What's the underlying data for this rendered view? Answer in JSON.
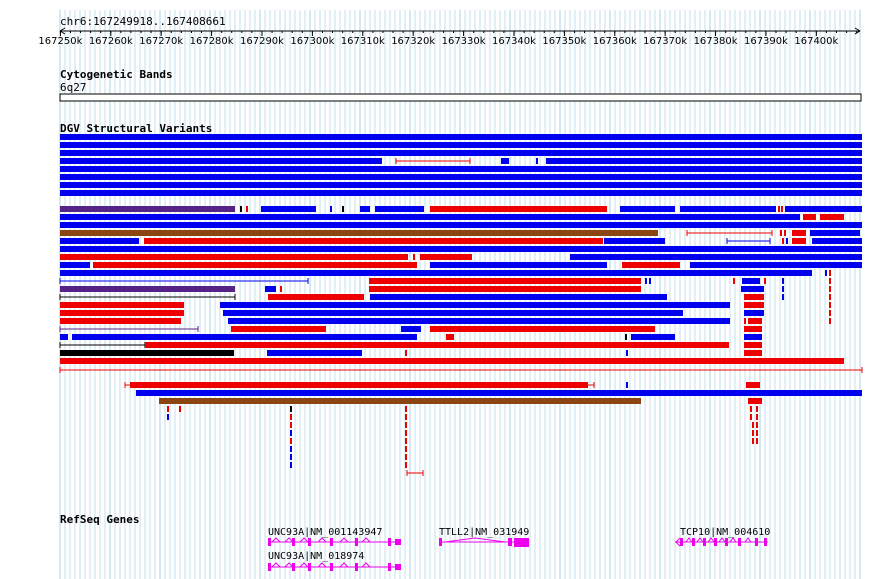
{
  "ruler": {
    "region_label": "chr6:167249918..167408661",
    "start_bp": 167249918,
    "end_bp": 167408661,
    "tick_labels": [
      "167250k",
      "167260k",
      "167270k",
      "167280k",
      "167290k",
      "167300k",
      "167310k",
      "167320k",
      "167330k",
      "167340k",
      "167350k",
      "167360k",
      "167370k",
      "167380k",
      "167390k",
      "167400k"
    ]
  },
  "cytoband_track": {
    "title": "Cytogenetic Bands",
    "band_label": "6q27"
  },
  "dgv_track": {
    "title": "DGV Structural Variants"
  },
  "refseq_track": {
    "title": "RefSeq Genes",
    "genes": [
      {
        "label": "UNC93A|NM_001143947"
      },
      {
        "label": "UNC93A|NM_018974"
      },
      {
        "label": "TTLL2|NM_031949"
      },
      {
        "label": "TCP10|NM_004610"
      }
    ]
  },
  "colors": {
    "gain": "#0000ee",
    "loss": "#ee0000",
    "inversion": "#8b4513",
    "complex": "#552288",
    "other": "#000000",
    "gene": "#ee00ee",
    "grid": "#9fcfdf"
  }
}
